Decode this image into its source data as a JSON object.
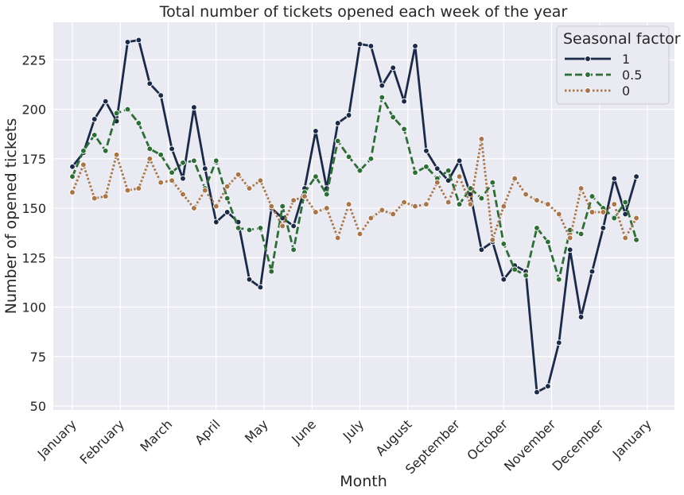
{
  "chart_data": {
    "type": "line",
    "title": "Total number of tickets opened each week of the year",
    "xlabel": "Month",
    "ylabel": "Number of opened tickets",
    "x_tick_labels": [
      "January",
      "February",
      "March",
      "April",
      "May",
      "June",
      "July",
      "August",
      "September",
      "October",
      "November",
      "December",
      "January"
    ],
    "y_ticks": [
      50,
      75,
      100,
      125,
      150,
      175,
      200,
      225
    ],
    "ylim": [
      48,
      244
    ],
    "grid": true,
    "legend": {
      "title": "Seasonal factor",
      "placement": "top-right"
    },
    "weeks": [
      1,
      2,
      3,
      4,
      5,
      6,
      7,
      8,
      9,
      10,
      11,
      12,
      13,
      14,
      15,
      16,
      17,
      18,
      19,
      20,
      21,
      22,
      23,
      24,
      25,
      26,
      27,
      28,
      29,
      30,
      31,
      32,
      33,
      34,
      35,
      36,
      37,
      38,
      39,
      40,
      41,
      42,
      43,
      44,
      45,
      46,
      47,
      48,
      49,
      50,
      51,
      52,
      53
    ],
    "series": [
      {
        "name": "1",
        "color": "#1b2a47",
        "dash": "solid",
        "values": [
          171,
          178,
          195,
          204,
          194,
          234,
          235,
          213,
          207,
          180,
          165,
          201,
          170,
          143,
          148,
          143,
          114,
          110,
          150,
          145,
          141,
          160,
          189,
          160,
          193,
          197,
          233,
          232,
          212,
          221,
          204,
          232,
          179,
          170,
          164,
          174,
          157,
          129,
          133,
          114,
          121,
          118,
          57,
          60,
          82,
          129,
          95,
          118,
          140,
          165,
          147,
          166,
          null
        ]
      },
      {
        "name": "0.5",
        "color": "#2e6d38",
        "dash": "dashed",
        "values": [
          166,
          179,
          187,
          179,
          198,
          200,
          193,
          180,
          177,
          168,
          173,
          174,
          160,
          174,
          155,
          140,
          139,
          140,
          118,
          151,
          129,
          158,
          166,
          157,
          184,
          176,
          169,
          175,
          206,
          196,
          190,
          168,
          171,
          165,
          169,
          152,
          160,
          155,
          163,
          132,
          119,
          116,
          140,
          133,
          114,
          139,
          137,
          156,
          150,
          145,
          153,
          134,
          null
        ]
      },
      {
        "name": "0",
        "color": "#a8764a",
        "dash": "dotted",
        "values": [
          158,
          172,
          155,
          156,
          177,
          159,
          160,
          175,
          163,
          164,
          157,
          150,
          159,
          151,
          161,
          167,
          160,
          164,
          151,
          141,
          154,
          156,
          148,
          150,
          135,
          152,
          137,
          145,
          149,
          147,
          153,
          151,
          152,
          163,
          153,
          166,
          152,
          185,
          134,
          151,
          165,
          157,
          154,
          152,
          147,
          135,
          160,
          148,
          148,
          152,
          135,
          145,
          null
        ]
      }
    ]
  }
}
